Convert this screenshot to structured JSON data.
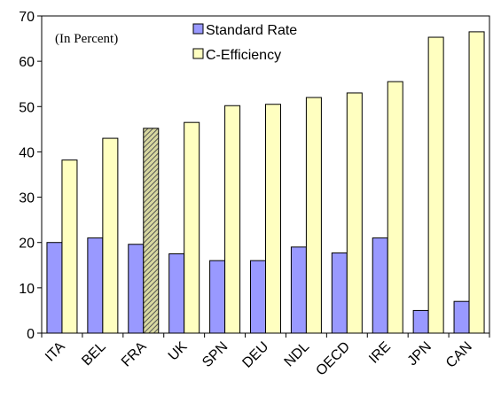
{
  "chart_data": {
    "type": "bar",
    "annotation": "(In Percent)",
    "categories": [
      "ITA",
      "BEL",
      "FRA",
      "UK",
      "SPN",
      "DEU",
      "NDL",
      "OECD",
      "IRE",
      "JPN",
      "CAN"
    ],
    "series": [
      {
        "name": "Standard Rate",
        "color": "#9999ff",
        "values": [
          20,
          21,
          19.6,
          17.5,
          16,
          16,
          19,
          17.7,
          21,
          5,
          7
        ]
      },
      {
        "name": "C-Efficiency",
        "color": "#ffffc0",
        "values": [
          38.2,
          43,
          45.2,
          46.5,
          50.2,
          50.5,
          52,
          53,
          55.5,
          65.3,
          66.5
        ],
        "hatched_index": 2
      }
    ],
    "ylim": [
      0,
      70
    ],
    "yticks": [
      0,
      10,
      20,
      30,
      40,
      50,
      60,
      70
    ],
    "grid": false
  }
}
